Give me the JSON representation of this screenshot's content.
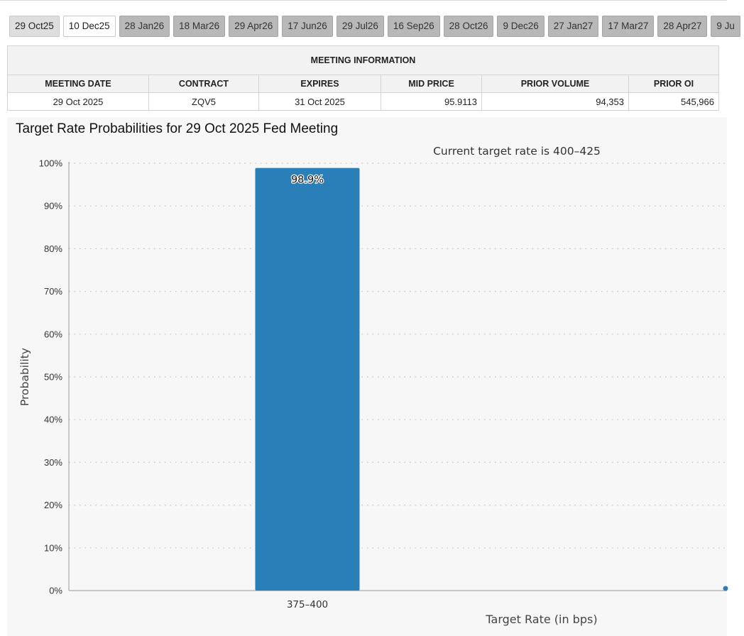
{
  "tabs": [
    {
      "label": "29 Oct25",
      "state": "selected"
    },
    {
      "label": "10 Dec25",
      "state": "light"
    },
    {
      "label": "28 Jan26",
      "state": "normal"
    },
    {
      "label": "18 Mar26",
      "state": "normal"
    },
    {
      "label": "29 Apr26",
      "state": "normal"
    },
    {
      "label": "17 Jun26",
      "state": "normal"
    },
    {
      "label": "29 Jul26",
      "state": "normal"
    },
    {
      "label": "16 Sep26",
      "state": "normal"
    },
    {
      "label": "28 Oct26",
      "state": "normal"
    },
    {
      "label": "9 Dec26",
      "state": "normal"
    },
    {
      "label": "27 Jan27",
      "state": "normal"
    },
    {
      "label": "17 Mar27",
      "state": "normal"
    },
    {
      "label": "28 Apr27",
      "state": "normal"
    },
    {
      "label": "9 Ju",
      "state": "normal"
    }
  ],
  "meeting_info": {
    "header": "MEETING INFORMATION",
    "columns": [
      "MEETING DATE",
      "CONTRACT",
      "EXPIRES",
      "MID PRICE",
      "PRIOR VOLUME",
      "PRIOR OI"
    ],
    "row": [
      "29 Oct 2025",
      "ZQV5",
      "31 Oct 2025",
      "95.9113",
      "94,353",
      "545,966"
    ]
  },
  "chart_title": "Target Rate Probabilities for 29 Oct 2025 Fed Meeting",
  "chart_data": {
    "type": "bar",
    "title": "Target Rate Probabilities for 29 Oct 2025 Fed Meeting",
    "subtitle": "Current target rate is 400–425",
    "categories": [
      "375–400"
    ],
    "values": [
      98.9
    ],
    "data_labels": [
      "98.9%"
    ],
    "xlabel": "Target Rate (in bps)",
    "ylabel": "Probability",
    "ylim": [
      0,
      100
    ],
    "yticks": [
      "0%",
      "10%",
      "20%",
      "30%",
      "40%",
      "50%",
      "60%",
      "70%",
      "80%",
      "90%",
      "100%"
    ],
    "grid": true,
    "bar_color": "#2a7fb9"
  }
}
